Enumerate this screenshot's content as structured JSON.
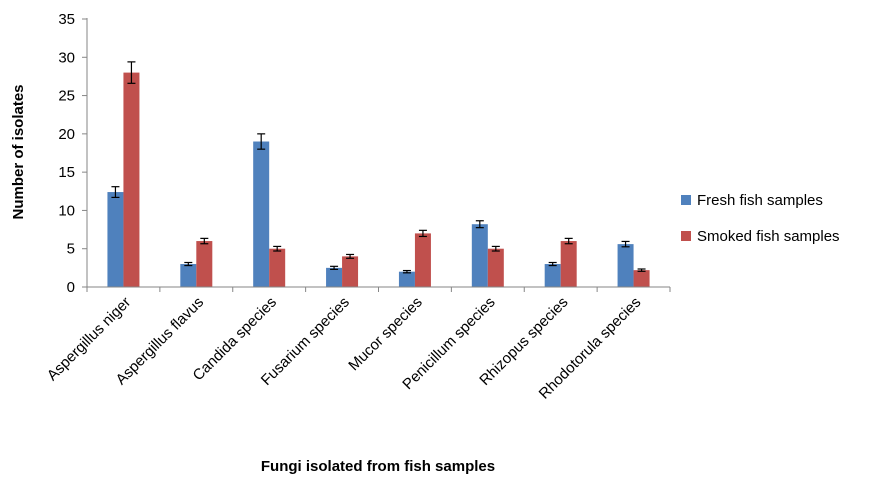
{
  "chart_data": {
    "type": "bar",
    "title": "",
    "xlabel": "Fungi isolated from fish samples",
    "ylabel": "Number of isolates",
    "ylim": [
      0,
      35
    ],
    "yticks": [
      0,
      5,
      10,
      15,
      20,
      25,
      30,
      35
    ],
    "grid": false,
    "legend_position": "right",
    "categories": [
      "Aspergillus niger",
      "Aspergillus flavus",
      "Candida species",
      "Fusarium species",
      "Mucor species",
      "Penicillum species",
      "Rhizopus species",
      "Rhodotorula species"
    ],
    "series": [
      {
        "name": "Fresh fish samples",
        "color": "#4F81BD",
        "values": [
          12.4,
          3.0,
          19.0,
          2.5,
          2.0,
          8.2,
          3.0,
          5.6
        ],
        "errors": [
          0.7,
          0.2,
          1.0,
          0.2,
          0.15,
          0.45,
          0.2,
          0.35
        ]
      },
      {
        "name": "Smoked fish samples",
        "color": "#C0504D",
        "values": [
          28.0,
          6.0,
          5.0,
          4.0,
          7.0,
          5.0,
          6.0,
          2.2
        ],
        "errors": [
          1.4,
          0.35,
          0.3,
          0.25,
          0.4,
          0.3,
          0.35,
          0.15
        ]
      }
    ]
  }
}
